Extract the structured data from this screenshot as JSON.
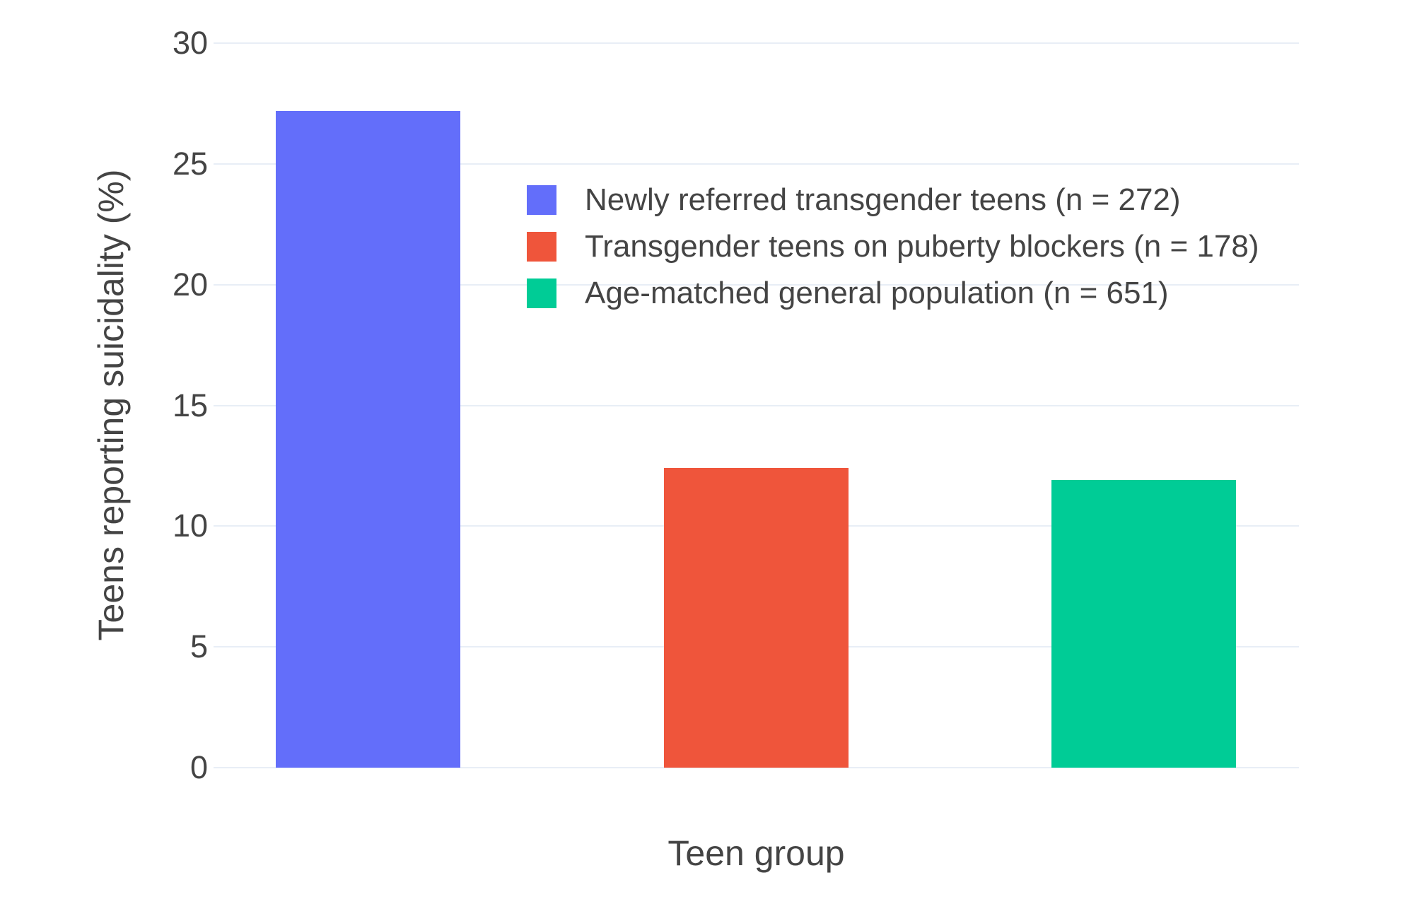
{
  "chart_data": {
    "type": "bar",
    "title": "",
    "xlabel": "Teen group",
    "ylabel": "Teens reporting suicidality (%)",
    "ylim": [
      0,
      30
    ],
    "yticks": [
      0,
      5,
      10,
      15,
      20,
      25,
      30
    ],
    "grid": true,
    "gridline_color": "#e8eef6",
    "text_color": "#444444",
    "background_color": "#ffffff",
    "legend_position": "inside-top-right",
    "series": [
      {
        "name": "Newly referred transgender teens (n = 272)",
        "value": 27.2,
        "color": "#636EFA"
      },
      {
        "name": "Transgender teens on puberty blockers (n = 178)",
        "value": 12.4,
        "color": "#EF553B"
      },
      {
        "name": "Age-matched general population (n = 651)",
        "value": 11.9,
        "color": "#00CC96"
      }
    ]
  }
}
